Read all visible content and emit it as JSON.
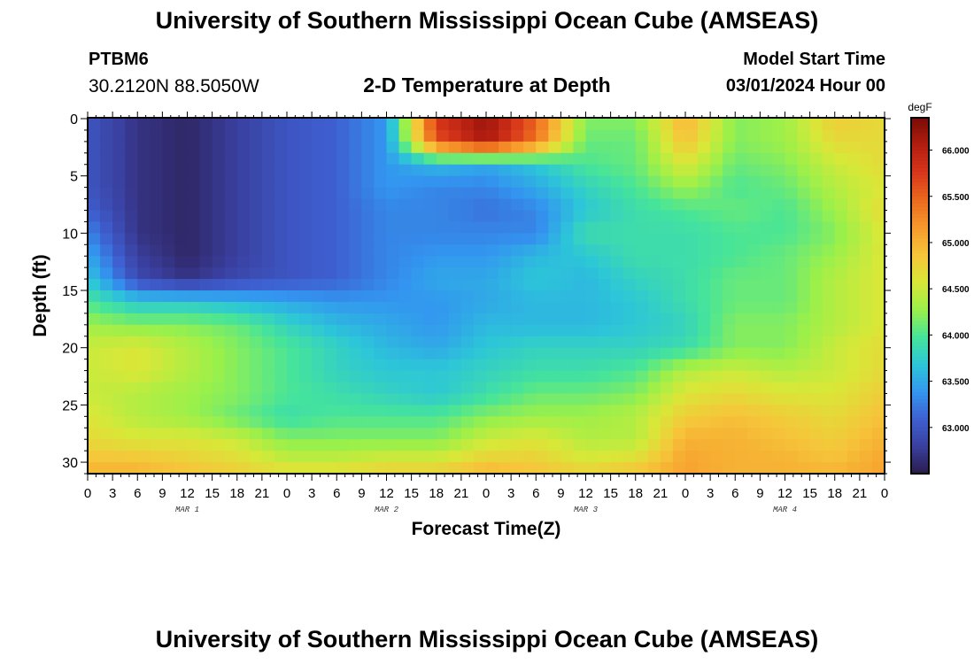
{
  "header": {
    "title": "University of Southern Mississippi Ocean Cube (AMSEAS)",
    "station_id": "PTBM6",
    "station_coords": "30.2120N  88.5050W",
    "chart_title": "2-D Temperature at Depth",
    "model_start_label": "Model Start Time",
    "model_start_value": "03/01/2024 Hour 00"
  },
  "footer": {
    "title": "University of Southern Mississippi Ocean Cube (AMSEAS)"
  },
  "chart_data": {
    "type": "heatmap",
    "title": "2-D Temperature at Depth",
    "xlabel": "Forecast Time(Z)",
    "ylabel": "Depth (ft)",
    "x_tick_labels": [
      "0",
      "3",
      "6",
      "9",
      "12",
      "15",
      "18",
      "21",
      "0",
      "3",
      "6",
      "9",
      "12",
      "15",
      "18",
      "21",
      "0",
      "3",
      "6",
      "9",
      "12",
      "15",
      "18",
      "21",
      "0",
      "3",
      "6",
      "9",
      "12",
      "15",
      "18",
      "21",
      "0"
    ],
    "date_labels": [
      {
        "label": "MAR 1",
        "hour": 12
      },
      {
        "label": "MAR 2",
        "hour": 36
      },
      {
        "label": "MAR 3",
        "hour": 60
      },
      {
        "label": "MAR 4",
        "hour": 84
      }
    ],
    "x_range_hours": [
      0,
      96
    ],
    "y_ticks": [
      0,
      5,
      10,
      15,
      20,
      25,
      30
    ],
    "y_range_ft": [
      0,
      31
    ],
    "y_inverted": true,
    "colorbar": {
      "unit": "degF",
      "tick_labels": [
        "63.000",
        "63.500",
        "64.000",
        "64.500",
        "65.000",
        "65.500",
        "66.000"
      ],
      "range": [
        62.5,
        66.35
      ],
      "colors": [
        "#2a1b4a",
        "#3a3f9e",
        "#3e5fd0",
        "#3396f0",
        "#2cc6d8",
        "#46e49a",
        "#9af04a",
        "#d8e838",
        "#f6c53a",
        "#f79a2c",
        "#ec6a1e",
        "#d7361a",
        "#b21e10",
        "#7a0c06"
      ]
    },
    "depth_profile_ft": [
      0,
      2,
      4,
      6,
      8,
      10,
      12,
      14,
      16,
      18,
      20,
      22,
      24,
      26,
      28,
      30,
      31
    ],
    "time_columns_hours": [
      0,
      6,
      12,
      18,
      24,
      30,
      36,
      42,
      48,
      54,
      60,
      66,
      72,
      78,
      84,
      90,
      96
    ],
    "values_degF": [
      [
        63.0,
        62.7,
        62.6,
        62.8,
        63.0,
        63.1,
        63.4,
        65.8,
        66.2,
        65.5,
        64.2,
        64.2,
        65.0,
        64.2,
        64.3,
        64.8,
        64.7
      ],
      [
        63.0,
        62.7,
        62.6,
        62.8,
        63.0,
        63.1,
        63.4,
        65.6,
        66.1,
        65.4,
        64.1,
        64.1,
        64.9,
        64.2,
        64.3,
        64.7,
        64.7
      ],
      [
        63.0,
        62.7,
        62.6,
        62.8,
        63.0,
        63.1,
        63.4,
        63.6,
        63.5,
        63.7,
        64.0,
        64.1,
        64.6,
        64.1,
        64.2,
        64.5,
        64.7
      ],
      [
        63.0,
        62.7,
        62.6,
        62.8,
        63.0,
        63.1,
        63.4,
        63.3,
        63.3,
        63.5,
        63.8,
        64.0,
        64.3,
        64.0,
        64.1,
        64.4,
        64.6
      ],
      [
        63.1,
        62.7,
        62.6,
        62.8,
        63.0,
        63.1,
        63.3,
        63.3,
        63.2,
        63.3,
        63.7,
        63.9,
        64.0,
        64.1,
        64.0,
        64.3,
        64.7
      ],
      [
        63.3,
        62.7,
        62.6,
        62.8,
        63.0,
        63.1,
        63.3,
        63.3,
        63.3,
        63.3,
        63.9,
        63.9,
        63.9,
        64.0,
        64.0,
        64.2,
        64.6
      ],
      [
        63.5,
        62.8,
        62.6,
        62.8,
        63.0,
        63.1,
        63.3,
        63.4,
        63.4,
        63.6,
        63.7,
        63.9,
        63.9,
        64.0,
        64.1,
        64.3,
        64.6
      ],
      [
        63.7,
        62.9,
        62.7,
        62.9,
        63.0,
        63.1,
        63.3,
        63.5,
        63.5,
        63.7,
        63.6,
        63.8,
        63.9,
        64.1,
        64.1,
        64.4,
        64.6
      ],
      [
        64.0,
        63.7,
        63.7,
        63.6,
        63.5,
        63.4,
        63.4,
        63.4,
        63.5,
        63.6,
        63.6,
        63.7,
        63.9,
        64.1,
        64.1,
        64.4,
        64.6
      ],
      [
        64.3,
        64.2,
        64.2,
        64.1,
        63.8,
        63.6,
        63.5,
        63.4,
        63.6,
        63.6,
        63.6,
        63.7,
        63.8,
        64.2,
        64.2,
        64.4,
        64.6
      ],
      [
        64.5,
        64.6,
        64.4,
        64.2,
        64.0,
        63.8,
        63.6,
        63.5,
        63.7,
        63.8,
        63.8,
        63.8,
        63.9,
        64.2,
        64.2,
        64.5,
        64.7
      ],
      [
        64.5,
        64.6,
        64.4,
        64.2,
        64.0,
        63.8,
        63.7,
        63.7,
        63.8,
        63.9,
        63.9,
        64.0,
        64.4,
        64.5,
        64.4,
        64.5,
        64.7
      ],
      [
        64.5,
        64.4,
        64.3,
        64.2,
        64.0,
        63.9,
        63.8,
        63.7,
        63.9,
        64.1,
        64.1,
        64.2,
        64.6,
        64.7,
        64.6,
        64.6,
        64.8
      ],
      [
        64.6,
        64.4,
        64.3,
        64.1,
        63.9,
        64.0,
        64.0,
        64.0,
        64.2,
        64.3,
        64.3,
        64.4,
        64.8,
        64.9,
        64.8,
        64.7,
        64.9
      ],
      [
        64.7,
        64.6,
        64.6,
        64.5,
        64.2,
        64.2,
        64.2,
        64.2,
        64.5,
        64.6,
        64.4,
        64.4,
        65.0,
        65.0,
        64.9,
        64.8,
        65.0
      ],
      [
        64.9,
        64.9,
        64.8,
        64.7,
        64.5,
        64.5,
        64.6,
        64.6,
        64.8,
        64.8,
        64.6,
        64.7,
        65.1,
        65.0,
        65.0,
        64.9,
        65.1
      ],
      [
        65.0,
        65.0,
        64.9,
        64.8,
        64.7,
        64.7,
        64.8,
        64.8,
        65.0,
        64.9,
        64.8,
        64.9,
        65.1,
        65.0,
        65.0,
        65.0,
        65.1
      ]
    ]
  }
}
